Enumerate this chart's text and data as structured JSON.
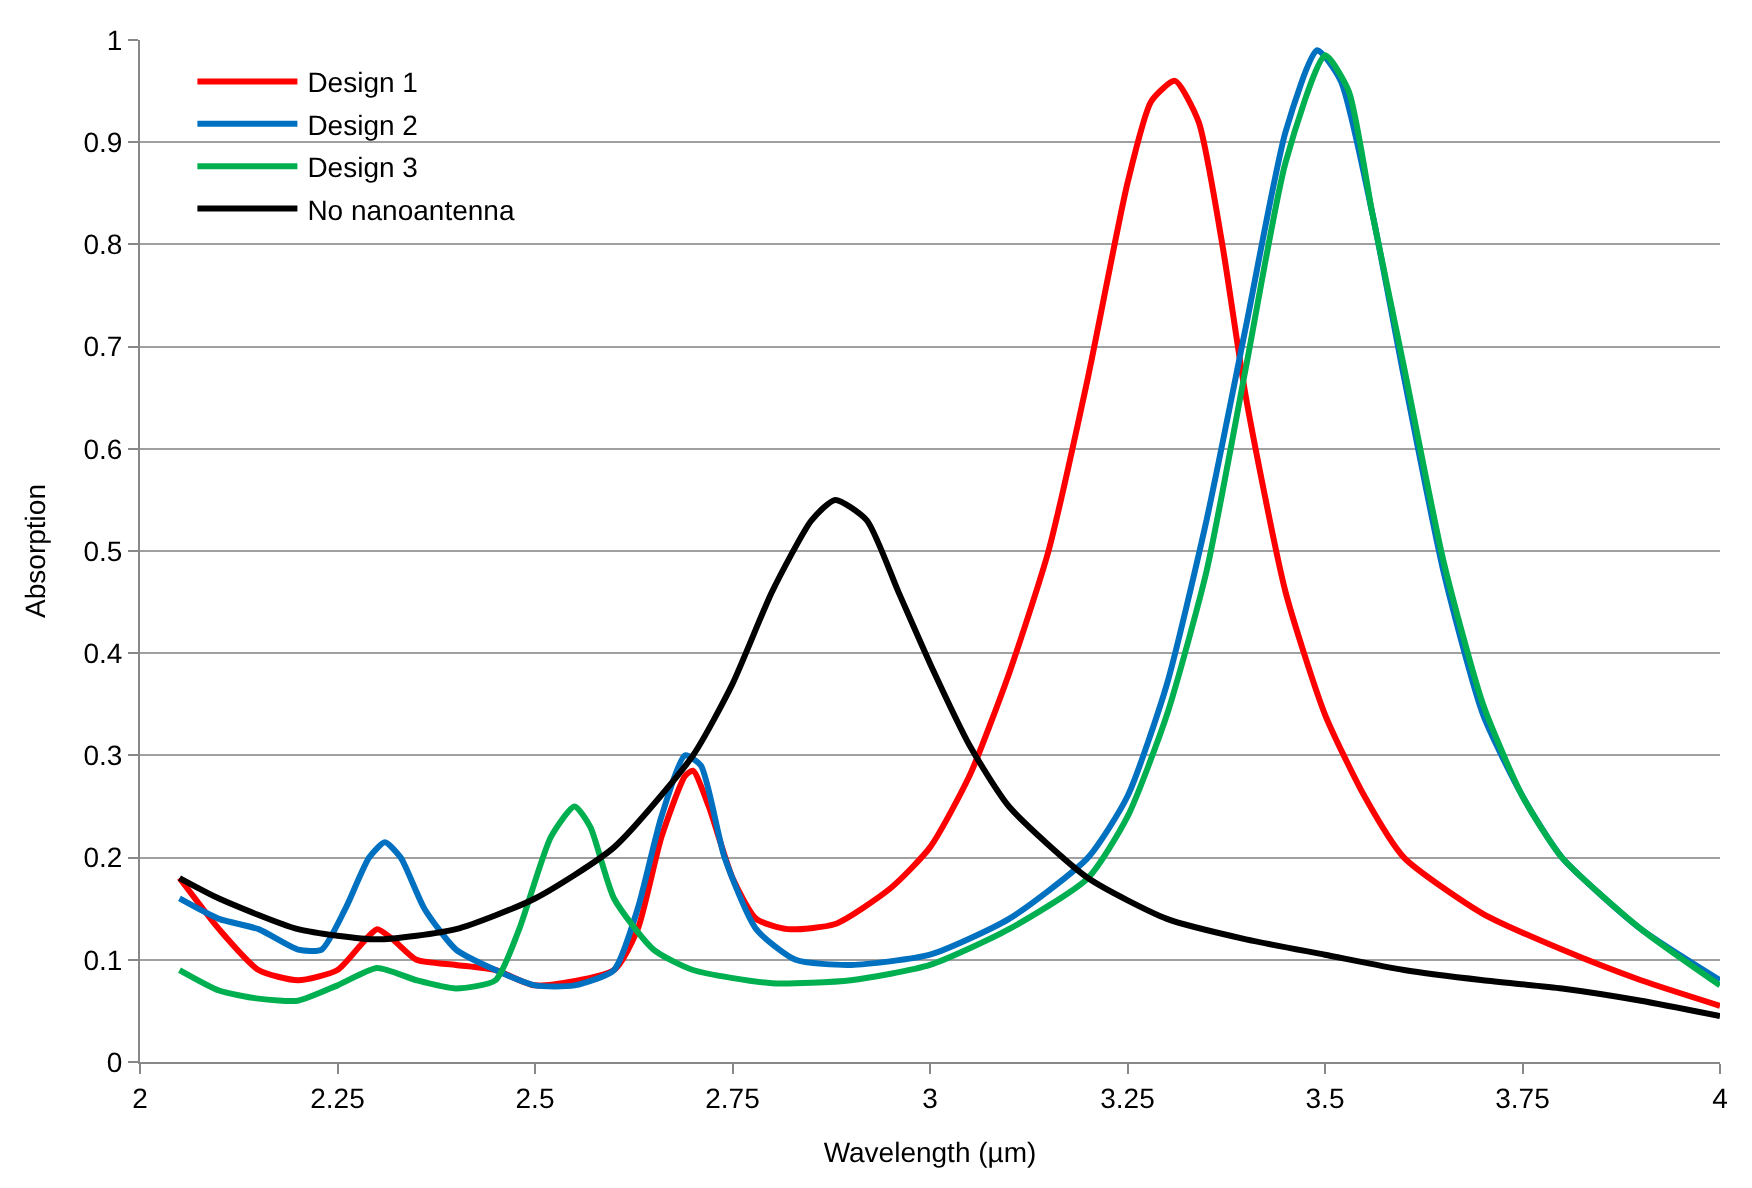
{
  "chart_data": {
    "type": "line",
    "xlabel": "Wavelength (µm)",
    "ylabel": "Absorption",
    "xlim": [
      2,
      4
    ],
    "ylim": [
      0,
      1
    ],
    "xticks": [
      2,
      2.25,
      2.5,
      2.75,
      3,
      3.25,
      3.5,
      3.75,
      4
    ],
    "yticks": [
      0,
      0.1,
      0.2,
      0.3,
      0.4,
      0.5,
      0.6,
      0.7,
      0.8,
      0.9,
      1
    ],
    "grid": "y",
    "legend": "top left",
    "marker": "none",
    "line_style": "solid",
    "series": [
      {
        "name": "Design 1",
        "color": "#ff0000",
        "x": [
          2.05,
          2.1,
          2.15,
          2.2,
          2.25,
          2.28,
          2.3,
          2.32,
          2.35,
          2.4,
          2.45,
          2.5,
          2.6,
          2.63,
          2.66,
          2.69,
          2.7,
          2.72,
          2.75,
          2.78,
          2.82,
          2.88,
          2.95,
          3.0,
          3.05,
          3.1,
          3.15,
          3.2,
          3.25,
          3.28,
          3.31,
          3.34,
          3.37,
          3.4,
          3.45,
          3.5,
          3.55,
          3.6,
          3.7,
          3.8,
          3.9,
          4.0
        ],
        "values": [
          0.18,
          0.13,
          0.09,
          0.08,
          0.09,
          0.115,
          0.13,
          0.12,
          0.1,
          0.095,
          0.09,
          0.075,
          0.09,
          0.13,
          0.22,
          0.28,
          0.285,
          0.25,
          0.18,
          0.14,
          0.13,
          0.135,
          0.17,
          0.21,
          0.28,
          0.38,
          0.5,
          0.67,
          0.86,
          0.94,
          0.96,
          0.92,
          0.8,
          0.65,
          0.46,
          0.34,
          0.26,
          0.2,
          0.145,
          0.11,
          0.08,
          0.055
        ]
      },
      {
        "name": "Design 2",
        "color": "#0070c0",
        "x": [
          2.05,
          2.1,
          2.15,
          2.2,
          2.23,
          2.26,
          2.29,
          2.31,
          2.33,
          2.36,
          2.4,
          2.45,
          2.5,
          2.55,
          2.6,
          2.63,
          2.66,
          2.69,
          2.71,
          2.74,
          2.78,
          2.83,
          2.9,
          3.0,
          3.1,
          3.2,
          3.25,
          3.3,
          3.35,
          3.4,
          3.45,
          3.49,
          3.52,
          3.56,
          3.6,
          3.65,
          3.7,
          3.75,
          3.8,
          3.9,
          4.0
        ],
        "values": [
          0.16,
          0.14,
          0.13,
          0.11,
          0.11,
          0.15,
          0.2,
          0.215,
          0.2,
          0.15,
          0.11,
          0.09,
          0.075,
          0.075,
          0.09,
          0.15,
          0.24,
          0.3,
          0.29,
          0.2,
          0.13,
          0.1,
          0.095,
          0.105,
          0.14,
          0.2,
          0.26,
          0.37,
          0.53,
          0.72,
          0.91,
          0.99,
          0.96,
          0.83,
          0.67,
          0.48,
          0.34,
          0.26,
          0.2,
          0.13,
          0.08
        ]
      },
      {
        "name": "Design 3",
        "color": "#00b050",
        "x": [
          2.05,
          2.1,
          2.15,
          2.2,
          2.25,
          2.3,
          2.35,
          2.4,
          2.45,
          2.48,
          2.52,
          2.55,
          2.57,
          2.6,
          2.65,
          2.7,
          2.8,
          2.9,
          3.0,
          3.1,
          3.2,
          3.25,
          3.3,
          3.35,
          3.4,
          3.45,
          3.5,
          3.53,
          3.56,
          3.6,
          3.65,
          3.7,
          3.75,
          3.8,
          3.9,
          4.0
        ],
        "values": [
          0.09,
          0.07,
          0.062,
          0.06,
          0.075,
          0.092,
          0.08,
          0.072,
          0.08,
          0.13,
          0.22,
          0.25,
          0.23,
          0.16,
          0.11,
          0.09,
          0.077,
          0.08,
          0.095,
          0.13,
          0.18,
          0.24,
          0.34,
          0.48,
          0.68,
          0.88,
          0.985,
          0.95,
          0.83,
          0.68,
          0.49,
          0.35,
          0.26,
          0.2,
          0.13,
          0.075
        ]
      },
      {
        "name": "No nanoantenna",
        "color": "#000000",
        "x": [
          2.05,
          2.1,
          2.2,
          2.3,
          2.4,
          2.5,
          2.6,
          2.7,
          2.75,
          2.8,
          2.85,
          2.88,
          2.92,
          2.96,
          3.0,
          3.05,
          3.1,
          3.2,
          3.3,
          3.4,
          3.5,
          3.6,
          3.7,
          3.8,
          3.9,
          4.0
        ],
        "values": [
          0.18,
          0.16,
          0.13,
          0.12,
          0.13,
          0.16,
          0.21,
          0.3,
          0.37,
          0.46,
          0.53,
          0.55,
          0.53,
          0.46,
          0.39,
          0.31,
          0.25,
          0.18,
          0.14,
          0.12,
          0.105,
          0.09,
          0.08,
          0.072,
          0.06,
          0.045
        ]
      }
    ]
  }
}
